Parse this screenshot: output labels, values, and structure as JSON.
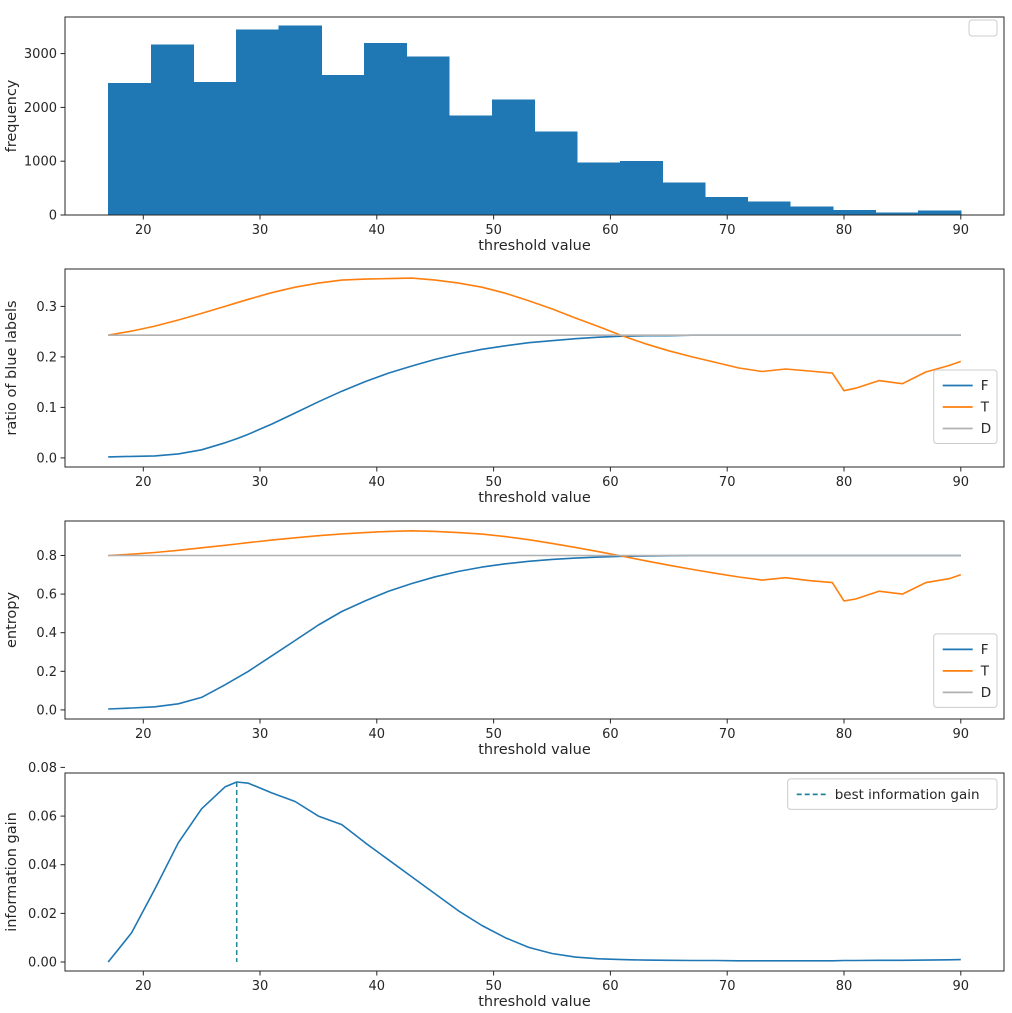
{
  "colors": {
    "blue": "#1f77b4",
    "orange": "#ff7f0e",
    "gray": "#b0b0b0",
    "teal": "#20879b",
    "text": "#262626",
    "spine": "#262626",
    "legend_border": "#cccccc"
  },
  "chart_data": [
    {
      "name": "frequency-histogram",
      "type": "bar",
      "title": "",
      "xlabel": "threshold value",
      "ylabel": "frequency",
      "xlim": [
        13.3,
        93.7
      ],
      "ylim": [
        0,
        3680
      ],
      "xticks": [
        20,
        30,
        40,
        50,
        60,
        70,
        80,
        90
      ],
      "xtick_labels": [
        "20",
        "30",
        "40",
        "50",
        "60",
        "70",
        "80",
        "90"
      ],
      "yticks": [
        0,
        1000,
        2000,
        3000
      ],
      "ytick_labels": [
        "0",
        "1000",
        "2000",
        "3000"
      ],
      "bins": {
        "start": 17,
        "width": 3.65,
        "color": "blue",
        "values": [
          2450,
          3170,
          2470,
          3450,
          3520,
          2600,
          3200,
          2950,
          1850,
          2150,
          1550,
          980,
          1000,
          600,
          330,
          250,
          160,
          90,
          45,
          80
        ]
      },
      "legend": {
        "y_frac": 0.015,
        "entries": []
      }
    },
    {
      "name": "ratio-of-blue-labels",
      "type": "line",
      "title": "",
      "xlabel": "threshold value",
      "ylabel": "ratio of blue labels",
      "xlim": [
        13.3,
        93.7
      ],
      "ylim": [
        -0.018,
        0.374
      ],
      "xticks": [
        20,
        30,
        40,
        50,
        60,
        70,
        80,
        90
      ],
      "xtick_labels": [
        "20",
        "30",
        "40",
        "50",
        "60",
        "70",
        "80",
        "90"
      ],
      "yticks": [
        0.0,
        0.1,
        0.2,
        0.3
      ],
      "ytick_labels": [
        "0.0",
        "0.1",
        "0.2",
        "0.3"
      ],
      "x": [
        17,
        19,
        21,
        23,
        25,
        27,
        28,
        29,
        31,
        33,
        35,
        37,
        39,
        41,
        43,
        45,
        47,
        49,
        51,
        53,
        55,
        57,
        59,
        61,
        63,
        65,
        67,
        69,
        71,
        73,
        75,
        77,
        79,
        80,
        81,
        83,
        85,
        87,
        89,
        90
      ],
      "series": [
        {
          "name": "F",
          "color": "blue",
          "values": [
            0.002,
            0.003,
            0.004,
            0.008,
            0.016,
            0.03,
            0.038,
            0.047,
            0.067,
            0.089,
            0.111,
            0.132,
            0.151,
            0.168,
            0.182,
            0.195,
            0.206,
            0.215,
            0.222,
            0.228,
            0.232,
            0.236,
            0.239,
            0.241,
            0.242,
            0.242,
            0.243,
            0.243,
            0.243,
            0.243,
            0.243,
            0.243,
            0.243,
            0.243,
            0.243,
            0.243,
            0.243,
            0.243,
            0.243,
            0.243
          ]
        },
        {
          "name": "T",
          "color": "orange",
          "values": [
            0.243,
            0.251,
            0.261,
            0.273,
            0.286,
            0.3,
            0.307,
            0.314,
            0.327,
            0.338,
            0.346,
            0.352,
            0.354,
            0.355,
            0.356,
            0.352,
            0.346,
            0.338,
            0.326,
            0.311,
            0.295,
            0.277,
            0.26,
            0.242,
            0.226,
            0.212,
            0.2,
            0.189,
            0.178,
            0.171,
            0.176,
            0.172,
            0.168,
            0.133,
            0.138,
            0.153,
            0.147,
            0.17,
            0.183,
            0.191
          ]
        },
        {
          "name": "D",
          "color": "gray",
          "constant": 0.243
        }
      ],
      "legend": {
        "y_frac": 0.51,
        "entries": [
          {
            "label": "F",
            "color": "blue"
          },
          {
            "label": "T",
            "color": "orange"
          },
          {
            "label": "D",
            "color": "gray"
          }
        ]
      }
    },
    {
      "name": "entropy",
      "type": "line",
      "title": "",
      "xlabel": "threshold value",
      "ylabel": "entropy",
      "xlim": [
        13.3,
        93.7
      ],
      "ylim": [
        -0.047,
        0.979
      ],
      "xticks": [
        20,
        30,
        40,
        50,
        60,
        70,
        80,
        90
      ],
      "xtick_labels": [
        "20",
        "30",
        "40",
        "50",
        "60",
        "70",
        "80",
        "90"
      ],
      "yticks": [
        0.0,
        0.2,
        0.4,
        0.6,
        0.8
      ],
      "ytick_labels": [
        "0.0",
        "0.2",
        "0.4",
        "0.6",
        "0.8"
      ],
      "x": [
        17,
        19,
        21,
        23,
        25,
        27,
        28,
        29,
        31,
        33,
        35,
        37,
        39,
        41,
        43,
        45,
        47,
        49,
        51,
        53,
        55,
        57,
        59,
        61,
        63,
        65,
        67,
        69,
        71,
        73,
        75,
        77,
        79,
        80,
        81,
        83,
        85,
        87,
        89,
        90
      ],
      "series": [
        {
          "name": "F",
          "color": "blue",
          "values": [
            0.005,
            0.01,
            0.016,
            0.032,
            0.065,
            0.13,
            0.165,
            0.2,
            0.28,
            0.36,
            0.44,
            0.51,
            0.565,
            0.615,
            0.655,
            0.69,
            0.718,
            0.74,
            0.757,
            0.77,
            0.78,
            0.787,
            0.792,
            0.796,
            0.798,
            0.799,
            0.8,
            0.8,
            0.8,
            0.8,
            0.8,
            0.8,
            0.8,
            0.8,
            0.8,
            0.8,
            0.8,
            0.8,
            0.8,
            0.8
          ]
        },
        {
          "name": "T",
          "color": "orange",
          "values": [
            0.8,
            0.807,
            0.816,
            0.827,
            0.84,
            0.853,
            0.86,
            0.867,
            0.88,
            0.892,
            0.903,
            0.912,
            0.919,
            0.925,
            0.928,
            0.925,
            0.919,
            0.911,
            0.898,
            0.882,
            0.863,
            0.842,
            0.82,
            0.797,
            0.773,
            0.75,
            0.728,
            0.708,
            0.689,
            0.673,
            0.685,
            0.67,
            0.66,
            0.565,
            0.575,
            0.615,
            0.6,
            0.66,
            0.68,
            0.7
          ]
        },
        {
          "name": "D",
          "color": "gray",
          "constant": 0.8
        }
      ],
      "legend": {
        "y_frac": 0.57,
        "entries": [
          {
            "label": "F",
            "color": "blue"
          },
          {
            "label": "T",
            "color": "orange"
          },
          {
            "label": "D",
            "color": "gray"
          }
        ]
      }
    },
    {
      "name": "information-gain",
      "type": "line",
      "title": "",
      "xlabel": "threshold value",
      "ylabel": "information gain",
      "xlim": [
        13.3,
        93.7
      ],
      "ylim": [
        -0.0037,
        0.0777
      ],
      "xticks": [
        20,
        30,
        40,
        50,
        60,
        70,
        80,
        90
      ],
      "xtick_labels": [
        "20",
        "30",
        "40",
        "50",
        "60",
        "70",
        "80",
        "90"
      ],
      "yticks": [
        0.0,
        0.02,
        0.04,
        0.06,
        0.08
      ],
      "ytick_labels": [
        "0.00",
        "0.02",
        "0.04",
        "0.06",
        "0.08"
      ],
      "x": [
        17,
        19,
        21,
        23,
        25,
        27,
        28,
        29,
        31,
        33,
        35,
        37,
        39,
        41,
        43,
        45,
        47,
        49,
        51,
        53,
        55,
        57,
        59,
        61,
        63,
        65,
        67,
        69,
        71,
        73,
        75,
        77,
        79,
        80,
        81,
        83,
        85,
        87,
        89,
        90
      ],
      "series": [
        {
          "name": "information gain",
          "color": "blue",
          "values": [
            0.0,
            0.012,
            0.03,
            0.049,
            0.063,
            0.072,
            0.074,
            0.0735,
            0.0695,
            0.066,
            0.06,
            0.0565,
            0.049,
            0.042,
            0.035,
            0.028,
            0.021,
            0.015,
            0.01,
            0.006,
            0.0035,
            0.002,
            0.0013,
            0.001,
            0.0008,
            0.0007,
            0.0006,
            0.0006,
            0.0005,
            0.0005,
            0.0005,
            0.0005,
            0.0005,
            0.0006,
            0.0006,
            0.0007,
            0.0007,
            0.0008,
            0.0009,
            0.001
          ]
        }
      ],
      "vlines": [
        {
          "x": 28,
          "y0": 0.0,
          "y1": 0.074,
          "color": "teal"
        }
      ],
      "best_threshold": 28,
      "best_information_gain": 0.074,
      "legend": {
        "y_frac": 0.03,
        "entries": [
          {
            "label": "best information gain",
            "color": "teal",
            "dash": true
          }
        ]
      }
    }
  ]
}
